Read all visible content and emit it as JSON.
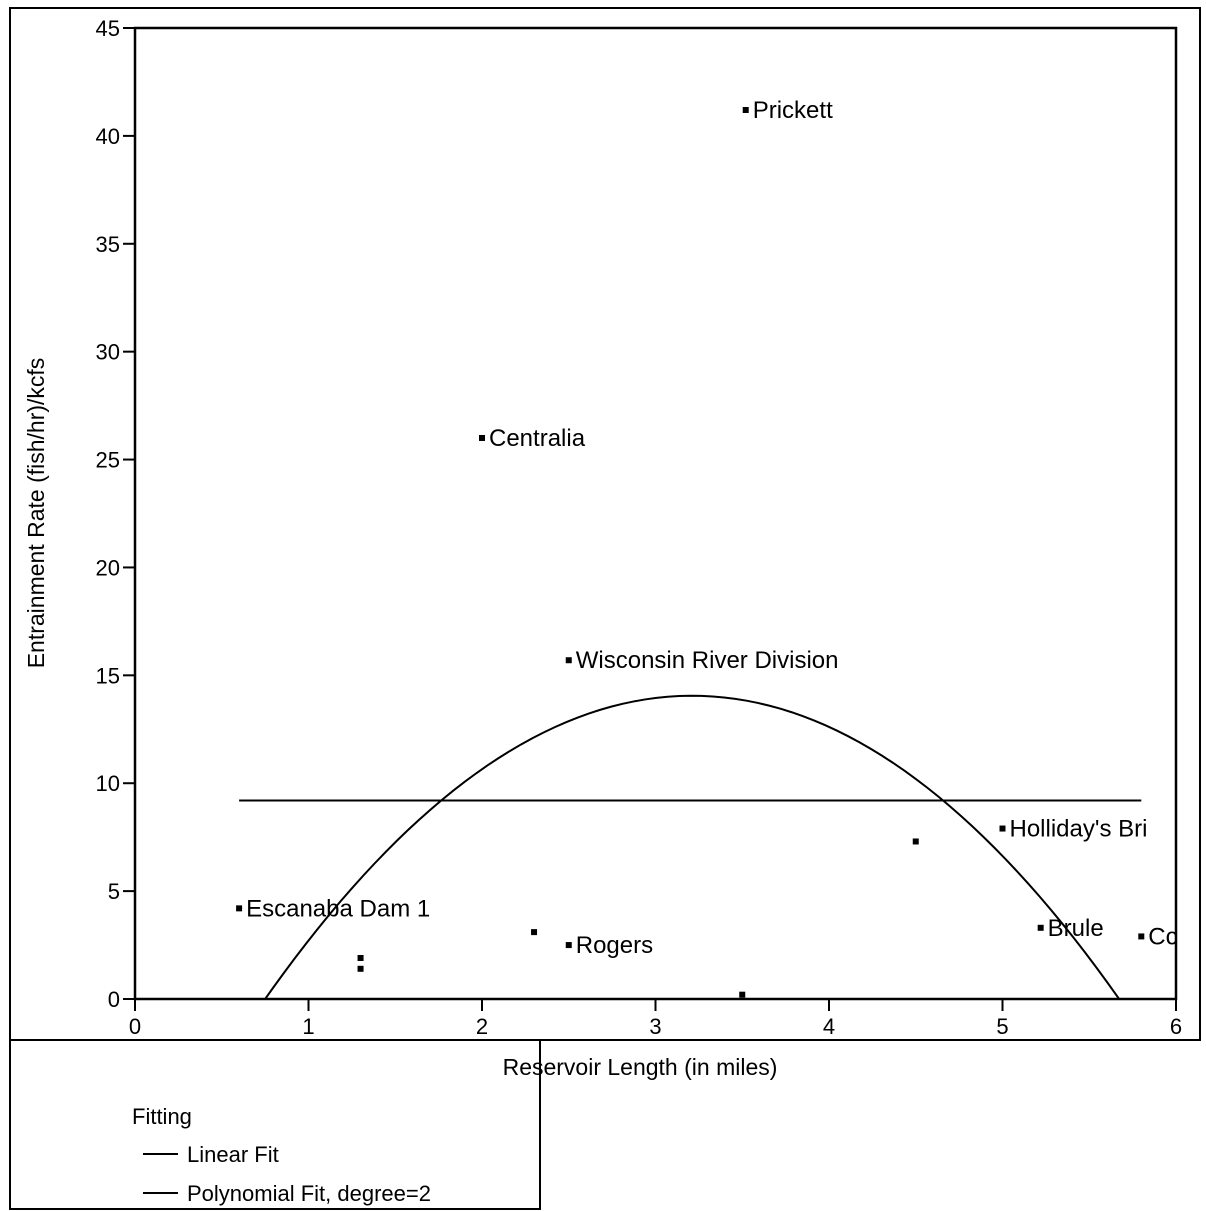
{
  "chart_data": {
    "type": "scatter",
    "title": "",
    "xlabel": "Reservoir Length (in miles)",
    "ylabel": "Entrainment Rate (fish/hr)/kcfs",
    "xlim": [
      0,
      6
    ],
    "ylim": [
      0,
      45
    ],
    "x_ticks": [
      0,
      1,
      2,
      3,
      4,
      5,
      6
    ],
    "y_ticks": [
      0,
      5,
      10,
      15,
      20,
      25,
      30,
      35,
      40,
      45
    ],
    "grid": false,
    "points": [
      {
        "x": 3.52,
        "y": 41.2,
        "label": "Prickett"
      },
      {
        "x": 2.0,
        "y": 26.0,
        "label": "Centralia"
      },
      {
        "x": 2.5,
        "y": 15.7,
        "label": "Wisconsin River Division"
      },
      {
        "x": 5.0,
        "y": 7.9,
        "label": "Holliday's Bri"
      },
      {
        "x": 0.6,
        "y": 4.2,
        "label": "Escanaba Dam 1"
      },
      {
        "x": 2.5,
        "y": 2.5,
        "label": "Rogers"
      },
      {
        "x": 5.22,
        "y": 3.3,
        "label": "Brule"
      },
      {
        "x": 5.8,
        "y": 2.9,
        "label": "Cc"
      },
      {
        "x": 4.5,
        "y": 7.3,
        "label": ""
      },
      {
        "x": 2.3,
        "y": 3.1,
        "label": ""
      },
      {
        "x": 1.3,
        "y": 1.9,
        "label": ""
      },
      {
        "x": 1.3,
        "y": 1.4,
        "label": ""
      },
      {
        "x": 3.5,
        "y": 0.2,
        "label": ""
      }
    ],
    "fits": [
      {
        "name": "Linear Fit",
        "kind": "linear",
        "x_range": [
          0.6,
          5.8
        ],
        "value": 9.2
      },
      {
        "name": "Polynomial Fit, degree=2",
        "kind": "poly2",
        "x_range": [
          0.6,
          5.8
        ],
        "coefficients": [
          -9.87,
          14.9,
          -2.32
        ]
      }
    ],
    "legend": {
      "title": "Fitting",
      "placement": "bottom-left",
      "entries": [
        "Linear Fit",
        "Polynomial Fit, degree=2"
      ]
    },
    "colors": {
      "ink": "#000000",
      "background": "#ffffff"
    }
  }
}
